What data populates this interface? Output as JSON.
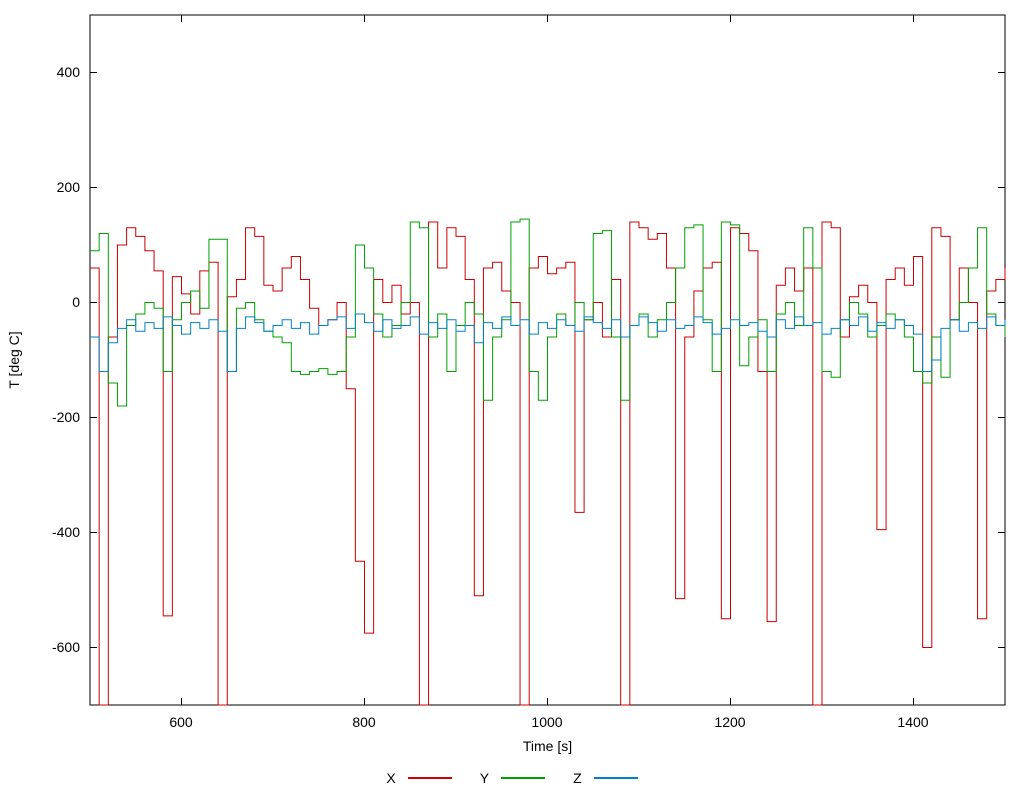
{
  "chart_data": {
    "type": "line",
    "title": "",
    "xlabel": "Time [s]",
    "ylabel": "T [deg C]",
    "xlim": [
      500,
      1500
    ],
    "ylim": [
      -700,
      500
    ],
    "xticks": [
      600,
      800,
      1000,
      1200,
      1400
    ],
    "yticks": [
      400,
      200,
      0,
      -200,
      -400,
      -600
    ],
    "grid": false,
    "step_mode": "steps-post",
    "legend_position": "bottom-center",
    "x_start": 500,
    "x_step": 10,
    "series": [
      {
        "name": "X",
        "color": "#cc0000",
        "values": [
          60,
          -700,
          -60,
          100,
          130,
          115,
          90,
          55,
          -545,
          45,
          15,
          -20,
          55,
          70,
          -700,
          10,
          40,
          130,
          115,
          30,
          20,
          60,
          80,
          40,
          -10,
          -40,
          -30,
          0,
          -150,
          -450,
          -575,
          40,
          0,
          30,
          -20,
          0,
          -700,
          140,
          60,
          130,
          115,
          40,
          -510,
          60,
          70,
          20,
          0,
          -700,
          60,
          80,
          50,
          60,
          70,
          -365,
          -30,
          0,
          -60,
          40,
          -700,
          140,
          130,
          110,
          120,
          60,
          -515,
          -60,
          20,
          60,
          70,
          -550,
          130,
          120,
          90,
          -120,
          -555,
          30,
          60,
          20,
          60,
          -700,
          140,
          130,
          -60,
          10,
          30,
          0,
          -395,
          40,
          60,
          30,
          80,
          -600,
          130,
          115,
          -30,
          60,
          0,
          -550,
          20,
          40,
          60
        ]
      },
      {
        "name": "Y",
        "color": "#00a000",
        "values": [
          90,
          120,
          -140,
          -180,
          -40,
          -20,
          0,
          -10,
          -120,
          -30,
          0,
          20,
          -10,
          110,
          110,
          -120,
          -10,
          0,
          -30,
          -50,
          -60,
          -70,
          -120,
          -125,
          -120,
          -115,
          -125,
          -120,
          -60,
          100,
          60,
          -20,
          -60,
          -40,
          0,
          140,
          130,
          -60,
          -20,
          -120,
          -40,
          0,
          -20,
          -170,
          -60,
          -30,
          140,
          145,
          -120,
          -170,
          -60,
          -20,
          -40,
          0,
          -30,
          120,
          125,
          -60,
          -170,
          -40,
          -20,
          -60,
          -30,
          0,
          60,
          130,
          135,
          -30,
          -120,
          140,
          135,
          -110,
          -60,
          -30,
          -120,
          -20,
          0,
          -40,
          130,
          60,
          -120,
          -130,
          -30,
          0,
          -20,
          -60,
          -40,
          -20,
          -30,
          -60,
          -120,
          -140,
          -60,
          -130,
          -30,
          0,
          60,
          130,
          -20,
          -40,
          -60
        ]
      },
      {
        "name": "Z",
        "color": "#0082c8",
        "values": [
          -60,
          -120,
          -70,
          -45,
          -30,
          -50,
          -35,
          -45,
          -25,
          -40,
          -55,
          -35,
          -45,
          -30,
          -50,
          -120,
          -45,
          -25,
          -35,
          -50,
          -40,
          -30,
          -45,
          -35,
          -55,
          -40,
          -30,
          -25,
          -45,
          -20,
          -35,
          -50,
          -30,
          -45,
          -40,
          -25,
          -55,
          -35,
          -45,
          -30,
          -50,
          -40,
          -70,
          -35,
          -45,
          -25,
          -40,
          -30,
          -55,
          -35,
          -45,
          -30,
          -40,
          -50,
          -25,
          -35,
          -45,
          -30,
          -60,
          -40,
          -25,
          -35,
          -50,
          -30,
          -45,
          -40,
          -25,
          -35,
          -55,
          -45,
          -30,
          -40,
          -35,
          -50,
          -60,
          -30,
          -45,
          -25,
          -40,
          -35,
          -55,
          -45,
          -30,
          -40,
          -25,
          -50,
          -35,
          -45,
          -30,
          -40,
          -55,
          -120,
          -100,
          -45,
          -30,
          -50,
          -35,
          -45,
          -25,
          -40,
          -30
        ]
      }
    ]
  }
}
